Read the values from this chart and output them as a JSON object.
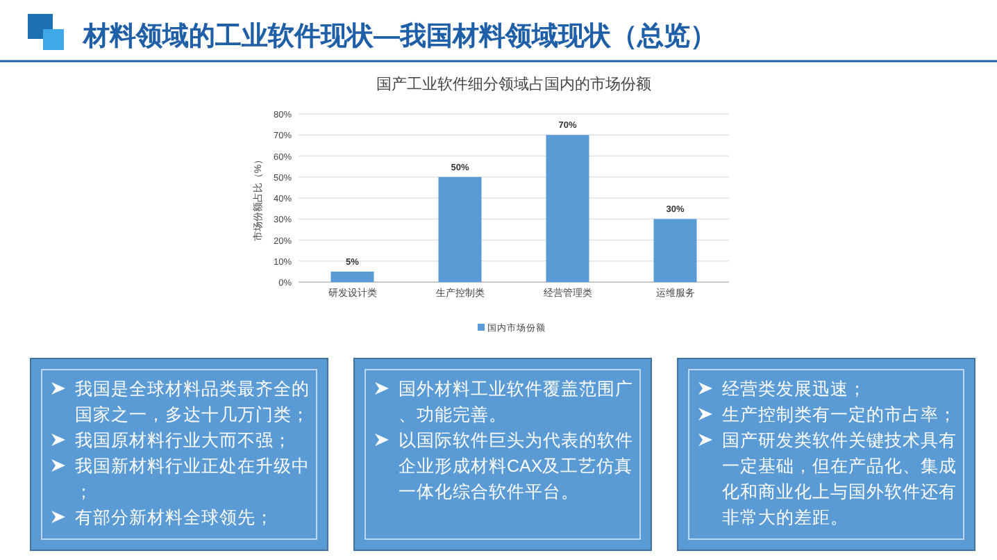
{
  "chart_data": {
    "type": "bar",
    "title": "材料领域的工业软件现状—我国材料领域现状（总览）",
    "subtitle": "国产工业软件细分领域占国内的市场份额",
    "ylabel": "市场份额占比（%）",
    "categories": [
      "研发设计类",
      "生产控制类",
      "经营管理类",
      "运维服务"
    ],
    "series": [
      {
        "name": "国内市场份额",
        "color": "#5b9bd5",
        "values": [
          5,
          50,
          70,
          30
        ],
        "value_labels": [
          "5%",
          "50%",
          "70%",
          "30%"
        ]
      }
    ],
    "ylim": [
      0,
      80
    ],
    "yticks": [
      {
        "value": 0,
        "label": "0%"
      },
      {
        "value": 10,
        "label": "10%"
      },
      {
        "value": 20,
        "label": "20%"
      },
      {
        "value": 30,
        "label": "30%"
      },
      {
        "value": 40,
        "label": "40%"
      },
      {
        "value": 50,
        "label": "50%"
      },
      {
        "value": 60,
        "label": "60%"
      },
      {
        "value": 70,
        "label": "70%"
      },
      {
        "value": 80,
        "label": "80%"
      }
    ],
    "grid": "y",
    "legend": "bottom",
    "annotations": [
      "我国是全球材料品类最齐全的国家之一，多达十几万门类；我国原材料行业大而不强；我国新材料行业正处在升级中；有部分新材料全球领先；",
      "国外材料工业软件覆盖范围广、功能完善。以国际软件巨头为代表的软件企业形成材料CAX及工艺仿真一体化综合软件平台。",
      "经营类发展迅速；生产控制类有一定的市占率；国产研发类软件关键技术具有一定基础，但在产品化、集成化和商业化上与国外软件还有非常大的差距。"
    ]
  }
}
